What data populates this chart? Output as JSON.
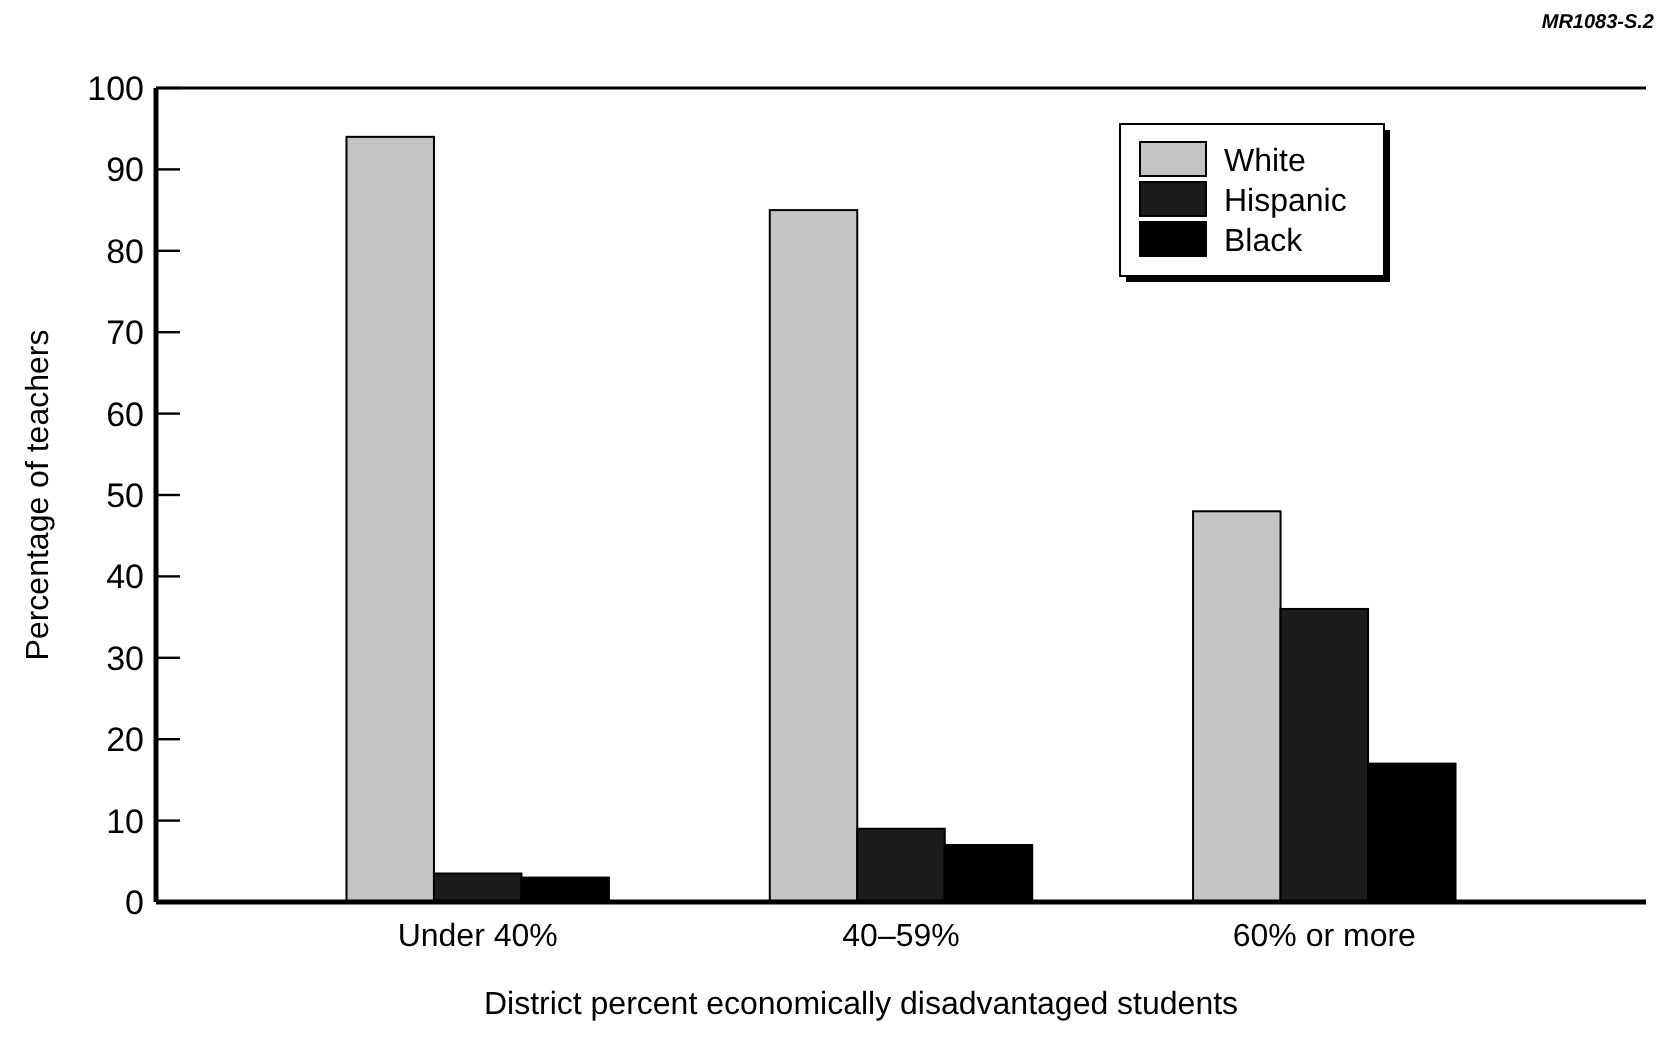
{
  "chart_data": {
    "type": "bar",
    "xlabel": "District percent economically disadvantaged students",
    "ylabel": "Percentage of teachers",
    "categories": [
      "Under 40%",
      "40–59%",
      "60% or more"
    ],
    "series": [
      {
        "name": "White",
        "color": "#c4c4c4",
        "values": [
          94,
          85,
          48
        ]
      },
      {
        "name": "Hispanic",
        "color": "#1c1c1c",
        "values": [
          3.5,
          9,
          36
        ]
      },
      {
        "name": "Black",
        "color": "#000000",
        "values": [
          3,
          7,
          17
        ]
      }
    ],
    "ylim": [
      0,
      100
    ],
    "yticks": [
      0,
      10,
      20,
      30,
      40,
      50,
      60,
      70,
      80,
      90,
      100
    ],
    "grid": false,
    "legend": "top right",
    "annotations": [
      "MR1083-S.2"
    ]
  }
}
